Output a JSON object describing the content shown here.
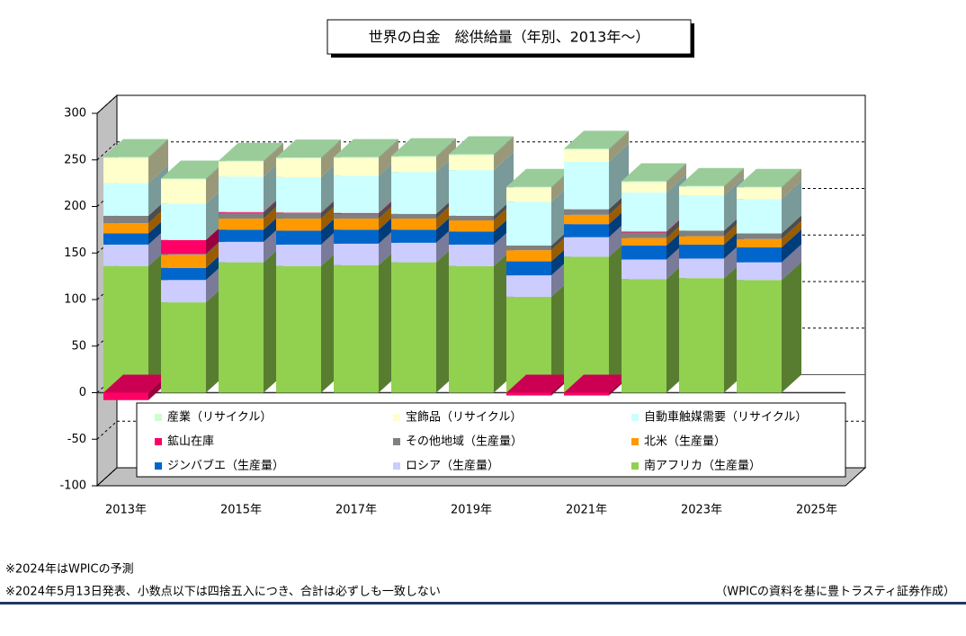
{
  "chart_data": {
    "type": "stacked_bar_3d",
    "title": "世界の白金　総供給量（年別、2013年～）",
    "categories": [
      "2013年",
      null,
      "2015年",
      null,
      "2017年",
      null,
      "2019年",
      null,
      "2021年",
      null,
      "2023年",
      null,
      "2025年"
    ],
    "series": [
      {
        "name": "産業（リサイクル）",
        "color": "#ccffcc",
        "values": [
          1,
          1,
          1,
          1,
          1,
          1,
          1,
          1,
          1,
          1,
          1,
          1,
          null
        ]
      },
      {
        "name": "宝飾品（リサイクル）",
        "color": "#ffffcc",
        "values": [
          27,
          26,
          16,
          20,
          19,
          16,
          16,
          15,
          13,
          11,
          9,
          12,
          null
        ]
      },
      {
        "name": "自動車触媒需要（リサイクル）",
        "color": "#ccffff",
        "values": [
          35,
          39,
          38,
          38,
          40,
          45,
          49,
          47,
          51,
          42,
          38,
          37,
          null
        ]
      },
      {
        "name": "鉱山在庫",
        "color": "#ff0066",
        "values": [
          -8,
          15,
          1,
          0.5,
          1,
          0,
          0,
          -3,
          -3,
          1,
          0,
          0,
          null
        ]
      },
      {
        "name": "その他地域（生産量）",
        "color": "#808080",
        "values": [
          8,
          1,
          6,
          6,
          5,
          5,
          5,
          5,
          6,
          6,
          6,
          6,
          null
        ]
      },
      {
        "name": "北米（生産量）",
        "color": "#ff9900",
        "values": [
          11,
          14,
          12,
          13,
          12,
          12,
          12,
          12,
          10,
          8,
          9,
          9,
          null
        ]
      },
      {
        "name": "ジンバブエ（生産量）",
        "color": "#0066cc",
        "values": [
          12,
          13,
          13,
          15,
          15,
          14,
          14,
          15,
          14,
          15,
          15,
          16,
          null
        ]
      },
      {
        "name": "ロシア（生産量）",
        "color": "#ccccff",
        "values": [
          23,
          24,
          22,
          23,
          23,
          21,
          23,
          23,
          21,
          21,
          21,
          19,
          null
        ]
      },
      {
        "name": "南アフリカ（生産量）",
        "color": "#92d050",
        "values": [
          136,
          97,
          140,
          136,
          137,
          140,
          136,
          103,
          146,
          122,
          123,
          121,
          null
        ]
      }
    ],
    "ylim": [
      -100,
      300
    ],
    "yticks": [
      -100,
      -50,
      0,
      50,
      100,
      150,
      200,
      250,
      300
    ],
    "negative_tick_color": "#ff0000",
    "grid": true,
    "notes": [
      "※2024年はWPICの予測",
      "※2024年5月13日発表、小数点以下は四捨五入につき、合計は必ずしも一致しない"
    ],
    "source": "（WPICの資料を基に豊トラスティ証券作成）"
  }
}
